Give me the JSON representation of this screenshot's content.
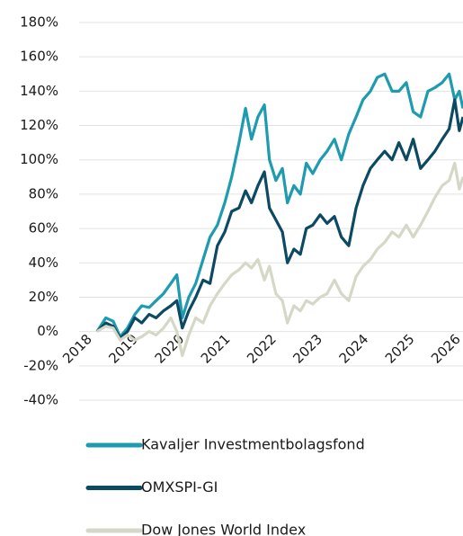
{
  "chart_data": {
    "type": "line",
    "x": [
      2018.16,
      2018.35,
      2018.51,
      2018.66,
      2018.82,
      2018.98,
      2019.13,
      2019.29,
      2019.44,
      2019.6,
      2019.76,
      2019.89,
      2020.01,
      2020.15,
      2020.3,
      2020.46,
      2020.61,
      2020.77,
      2020.93,
      2021.08,
      2021.24,
      2021.38,
      2021.51,
      2021.65,
      2021.79,
      2021.9,
      2022.04,
      2022.18,
      2022.29,
      2022.43,
      2022.57,
      2022.7,
      2022.84,
      2023.0,
      2023.15,
      2023.31,
      2023.46,
      2023.62,
      2023.78,
      2023.93,
      2024.09,
      2024.24,
      2024.4,
      2024.56,
      2024.71,
      2024.87,
      2025.02,
      2025.18,
      2025.34,
      2025.49,
      2025.65,
      2025.8,
      2025.92,
      2026.02,
      2026.1
    ],
    "series": [
      {
        "name": "Kavaljer Investmentbolagsfond",
        "color": "#1f9bb0",
        "values": [
          0,
          8,
          6,
          -3,
          2,
          10,
          15,
          14,
          18,
          22,
          28,
          33,
          8,
          20,
          28,
          42,
          55,
          62,
          75,
          90,
          110,
          130,
          112,
          125,
          132,
          100,
          88,
          95,
          75,
          85,
          80,
          98,
          92,
          100,
          105,
          112,
          100,
          115,
          125,
          135,
          140,
          148,
          150,
          140,
          140,
          145,
          128,
          125,
          140,
          142,
          145,
          150,
          135,
          140,
          130
        ]
      },
      {
        "name": "OMXSPI-GI",
        "color": "#0c4a64",
        "values": [
          0,
          5,
          3,
          -4,
          0,
          8,
          5,
          10,
          8,
          12,
          15,
          18,
          2,
          12,
          20,
          30,
          28,
          50,
          58,
          70,
          72,
          82,
          75,
          85,
          93,
          72,
          65,
          58,
          40,
          48,
          45,
          60,
          62,
          68,
          63,
          67,
          55,
          50,
          72,
          85,
          95,
          100,
          105,
          100,
          110,
          100,
          112,
          95,
          100,
          105,
          112,
          118,
          135,
          117,
          125
        ]
      },
      {
        "name": "Dow Jones World Index",
        "color": "#d5d8c6",
        "values": [
          0,
          3,
          2,
          -5,
          -2,
          -5,
          -3,
          0,
          -2,
          2,
          8,
          0,
          -14,
          -2,
          8,
          5,
          15,
          22,
          28,
          33,
          36,
          40,
          37,
          42,
          30,
          38,
          22,
          18,
          5,
          15,
          12,
          18,
          16,
          20,
          22,
          30,
          22,
          18,
          32,
          38,
          42,
          48,
          52,
          58,
          55,
          62,
          55,
          62,
          70,
          78,
          85,
          88,
          98,
          83,
          90
        ]
      }
    ],
    "xlim": [
      2017.77,
      2026.1
    ],
    "xticks": [
      2018,
      2019,
      2020,
      2021,
      2022,
      2023,
      2024,
      2025,
      2026
    ],
    "ylim": [
      -40,
      180
    ],
    "yticks": [
      {
        "value": -40,
        "label": "-40%"
      },
      {
        "value": -20,
        "label": "-20%"
      },
      {
        "value": 0,
        "label": "0%"
      },
      {
        "value": 20,
        "label": "20%"
      },
      {
        "value": 40,
        "label": "40%"
      },
      {
        "value": 60,
        "label": "60%"
      },
      {
        "value": 80,
        "label": "80%"
      },
      {
        "value": 100,
        "label": "100%"
      },
      {
        "value": 120,
        "label": "120%"
      },
      {
        "value": 140,
        "label": "140%"
      },
      {
        "value": 160,
        "label": "160%"
      },
      {
        "value": 180,
        "label": "180%"
      }
    ],
    "grid": true
  }
}
